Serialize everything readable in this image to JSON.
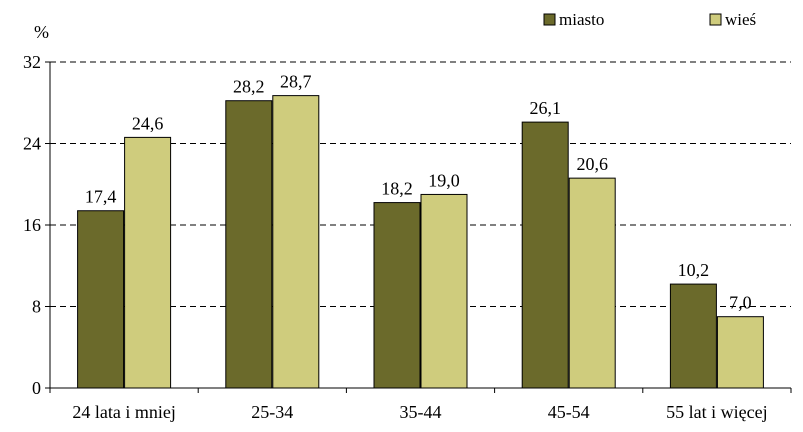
{
  "chart_data": {
    "type": "bar",
    "title": "",
    "xlabel": "",
    "ylabel": "%",
    "ylim": [
      0,
      32
    ],
    "yticks": [
      0,
      8,
      16,
      24,
      32
    ],
    "grid": "dashed horizontal",
    "legend_placement": "top-right",
    "categories": [
      "24 lata i mniej",
      "25-34",
      "35-44",
      "45-54",
      "55 lat i więcej"
    ],
    "series": [
      {
        "name": "miasto",
        "color": "#6b6a2b",
        "values": [
          17.4,
          28.2,
          18.2,
          26.1,
          10.2
        ],
        "labels": [
          "17,4",
          "28,2",
          "18,2",
          "26,1",
          "10,2"
        ]
      },
      {
        "name": "wieś",
        "color": "#cfcc7d",
        "values": [
          24.6,
          28.7,
          19.0,
          20.6,
          7.0
        ],
        "labels": [
          "24,6",
          "28,7",
          "19,0",
          "20,6",
          "7,0"
        ]
      }
    ]
  }
}
